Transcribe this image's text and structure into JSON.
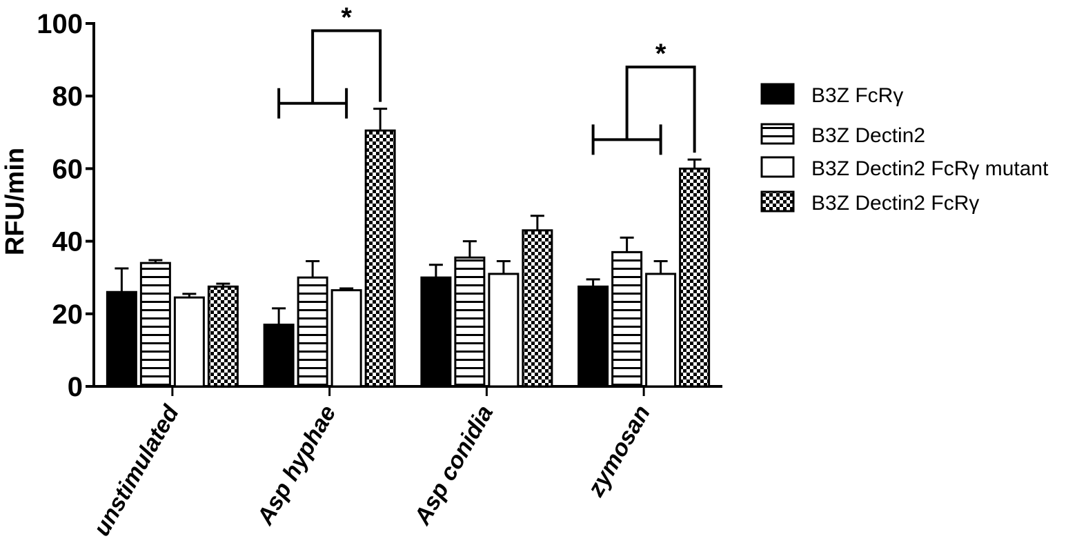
{
  "chart_data": {
    "type": "bar",
    "title": "",
    "xlabel": "",
    "ylabel": "RFU/min",
    "ylim": [
      0,
      100
    ],
    "yticks": [
      0,
      20,
      40,
      60,
      80,
      100
    ],
    "categories": [
      "unstimulated",
      "Asp hyphae",
      "Asp conidia",
      "zymosan"
    ],
    "series": [
      {
        "name": "B3Z FcRγ",
        "pattern": "solid",
        "values": [
          26,
          17,
          30,
          27.5
        ],
        "errors": [
          6.5,
          4.5,
          3.5,
          2
        ]
      },
      {
        "name": "B3Z Dectin2",
        "pattern": "horizontal-stripes",
        "values": [
          34,
          30,
          35.5,
          37
        ],
        "errors": [
          0.8,
          4.5,
          4.5,
          4
        ]
      },
      {
        "name": "B3Z Dectin2 FcRγ mutant",
        "pattern": "open",
        "values": [
          24.5,
          26.5,
          31,
          31
        ],
        "errors": [
          1,
          0.5,
          3.5,
          3.5
        ]
      },
      {
        "name": "B3Z Dectin2 FcRγ",
        "pattern": "checkered",
        "values": [
          27.5,
          70.5,
          43,
          60
        ],
        "errors": [
          0.8,
          6,
          4,
          2.5
        ]
      }
    ],
    "annotations": [
      {
        "category": "Asp hyphae",
        "label": "*",
        "bracket_y": 78,
        "top_y": 98
      },
      {
        "category": "zymosan",
        "label": "*",
        "bracket_y": 68,
        "top_y": 88
      }
    ],
    "legend_position": "right",
    "grid": false,
    "colors": {
      "bar_fill": "#000000",
      "background": "#ffffff"
    }
  }
}
